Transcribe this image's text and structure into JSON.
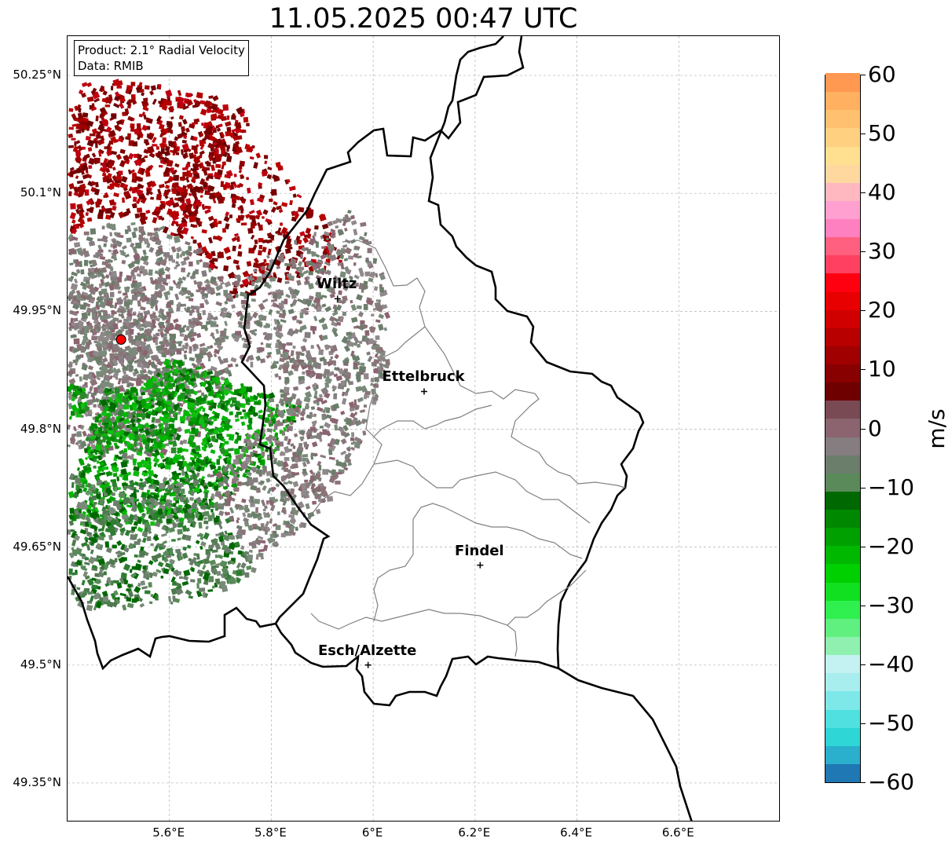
{
  "title": "11.05.2025 00:47 UTC",
  "info_box": {
    "product": "Product: 2.1° Radial Velocity",
    "data": "Data: RMIB"
  },
  "axes": {
    "lat_ticks": [
      "50.25°N",
      "50.1°N",
      "49.95°N",
      "49.8°N",
      "49.65°N",
      "49.5°N",
      "49.35°N"
    ],
    "lon_ticks": [
      "5.6°E",
      "5.8°E",
      "6°E",
      "6.2°E",
      "6.4°E",
      "6.6°E"
    ],
    "lon_range": [
      5.4,
      6.8
    ],
    "lat_range": [
      49.3,
      50.3
    ]
  },
  "cities": [
    {
      "name": "Wiltz",
      "lon": 5.93,
      "lat": 49.966
    },
    {
      "name": "Ettelbruck",
      "lon": 6.1,
      "lat": 49.848
    },
    {
      "name": "Findel",
      "lon": 6.21,
      "lat": 49.627
    },
    {
      "name": "Esch/Alzette",
      "lon": 5.99,
      "lat": 49.5
    }
  ],
  "radar_site": {
    "lon": 5.505,
    "lat": 49.914,
    "color": "#ff0000"
  },
  "colorbar": {
    "unit": "m/s",
    "min": -60,
    "max": 60,
    "tick_labels": [
      "60",
      "50",
      "40",
      "30",
      "20",
      "10",
      "0",
      "−10",
      "−20",
      "−30",
      "−40",
      "−50",
      "−60"
    ],
    "colors": [
      "#1f77b4",
      "#2ab0cc",
      "#2fd6d6",
      "#50e0e0",
      "#7ee8e8",
      "#a8eeee",
      "#c4f2f2",
      "#90f0b0",
      "#60f080",
      "#30f050",
      "#10e020",
      "#00d000",
      "#00b800",
      "#00a000",
      "#008800",
      "#006800",
      "#5a8a5a",
      "#6b7e6b",
      "#857d80",
      "#8b6470",
      "#7a4a54",
      "#6e0000",
      "#880000",
      "#a00000",
      "#b80000",
      "#d00000",
      "#e80000",
      "#ff0010",
      "#ff4060",
      "#ff6080",
      "#ff80c0",
      "#ffa0d0",
      "#ffb8c0",
      "#ffd8a0",
      "#ffe090",
      "#ffd080",
      "#ffc070",
      "#ffb060",
      "#ff9850"
    ]
  },
  "colors": {
    "border": "#000000",
    "cantons": "#808080",
    "grid": "#b0b0b0"
  }
}
